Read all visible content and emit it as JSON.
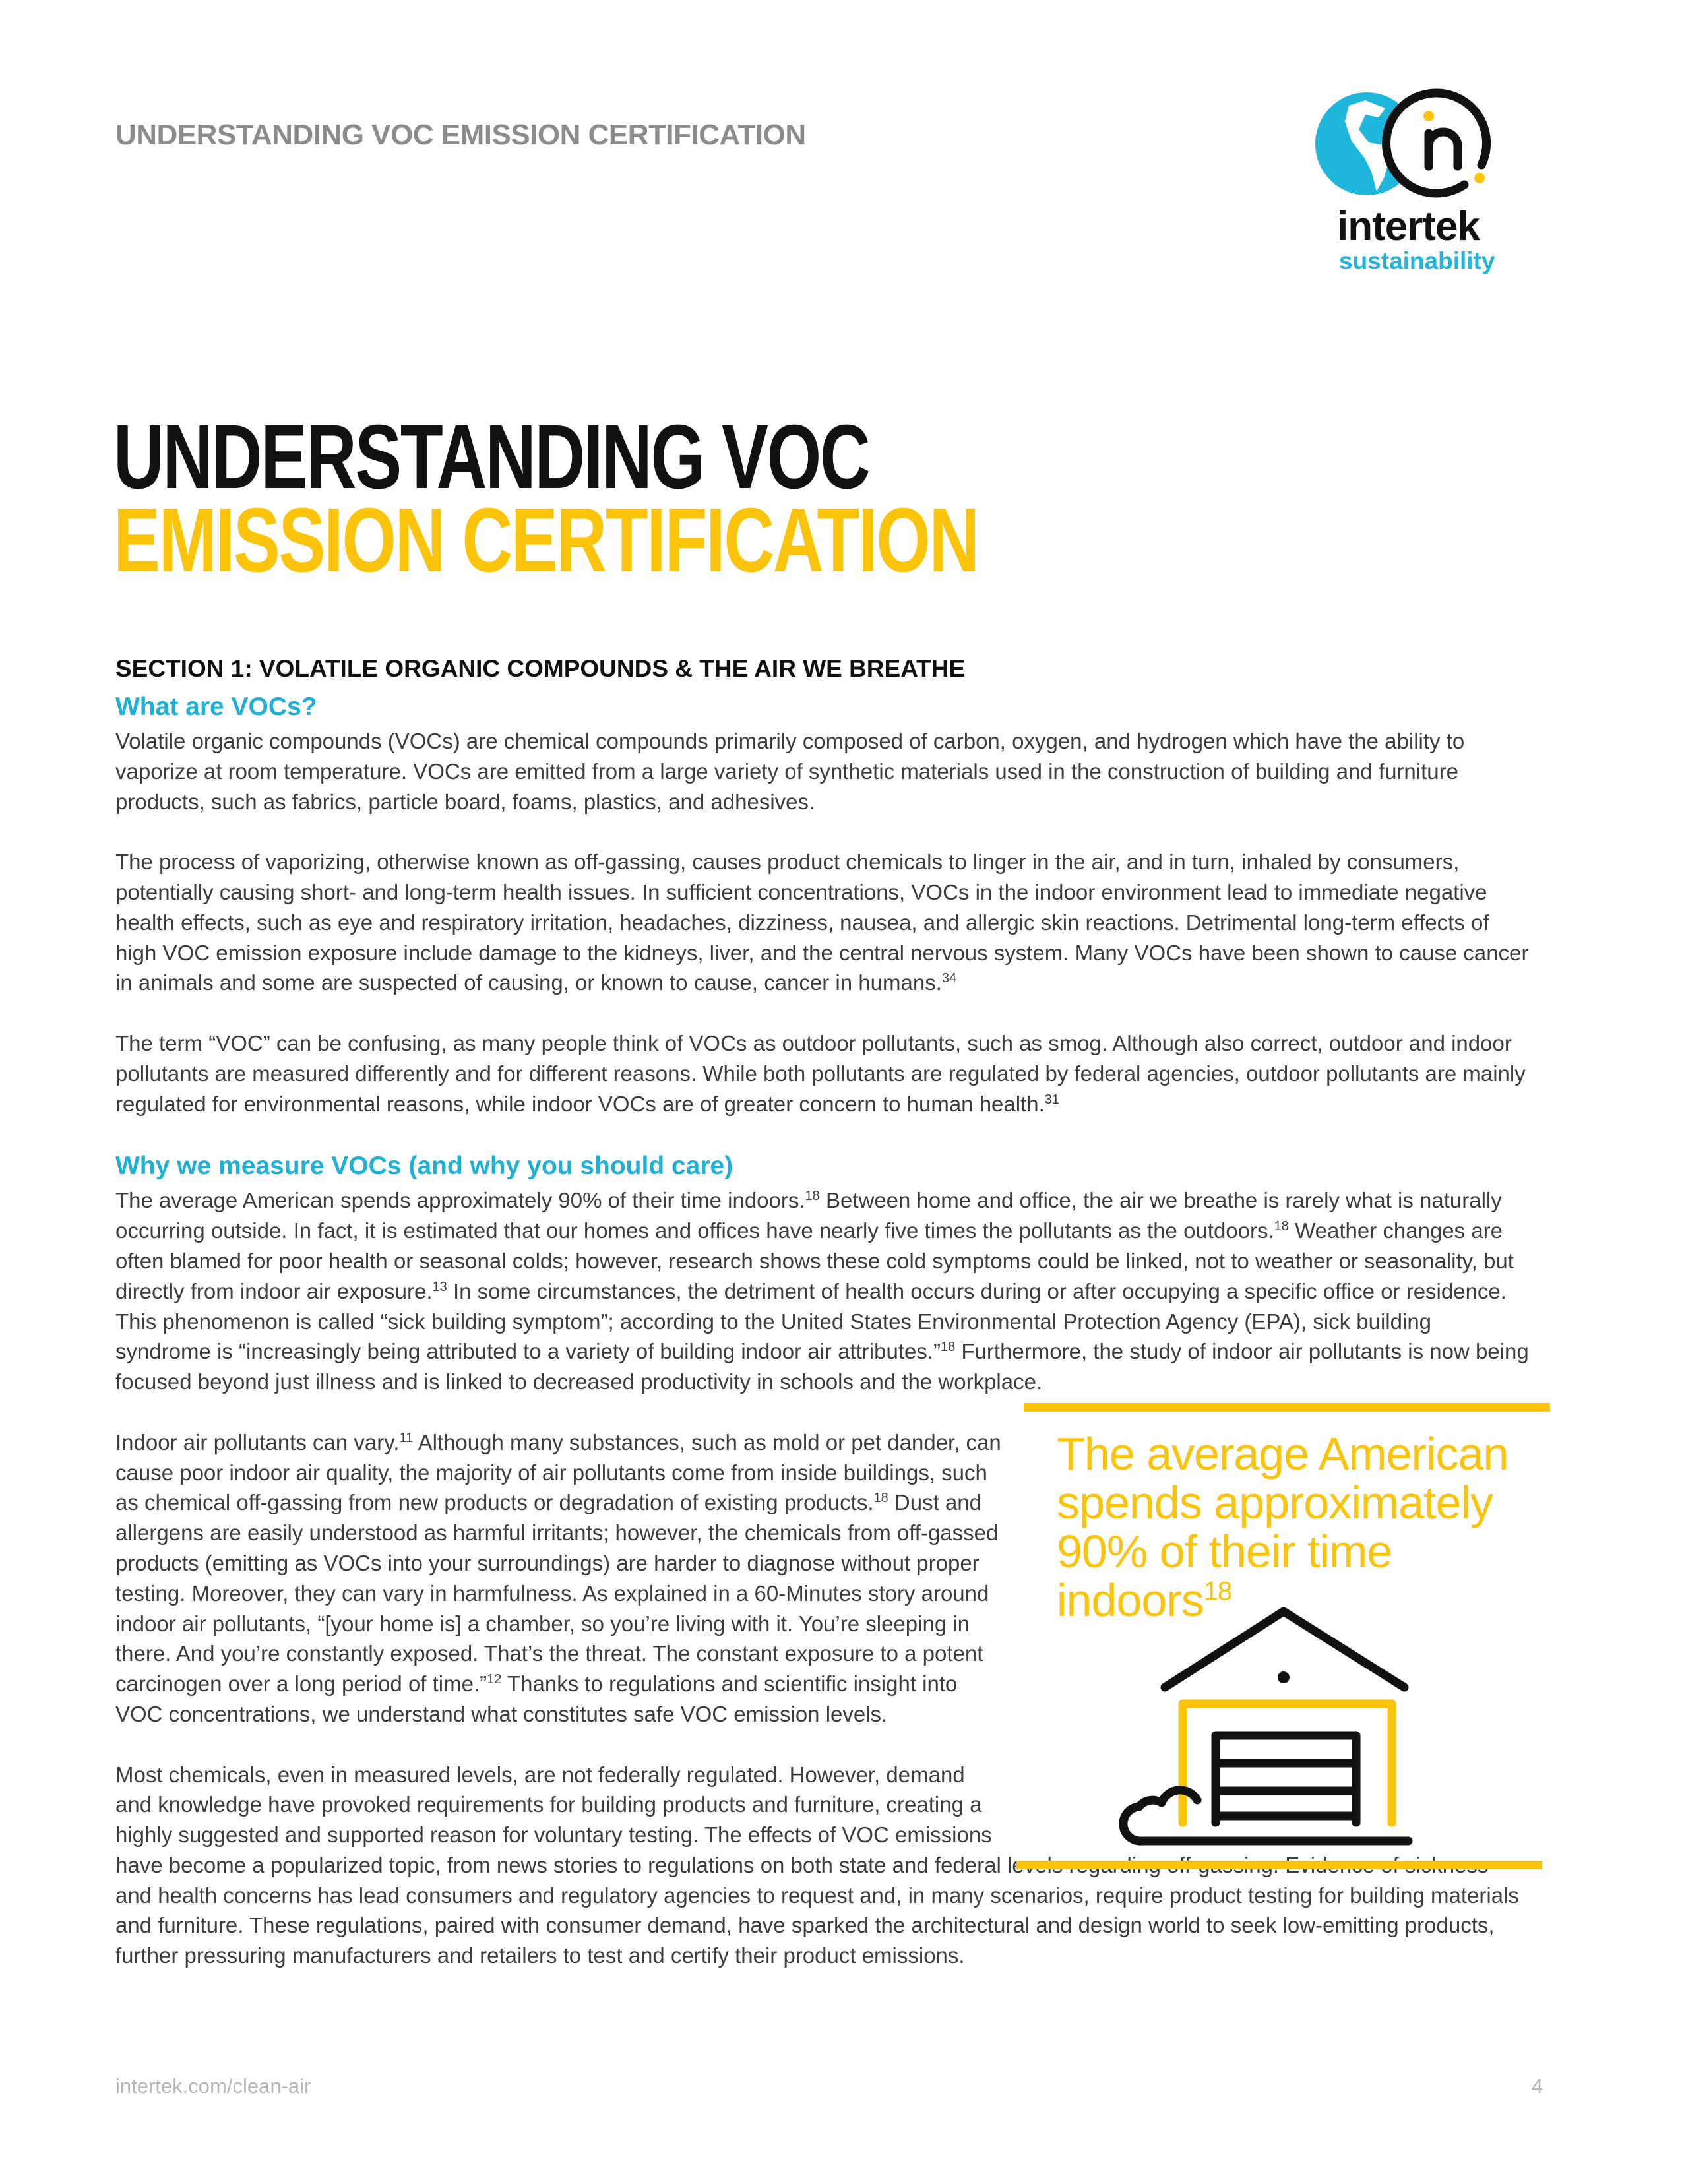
{
  "header": {
    "running_title": "UNDERSTANDING VOC EMISSION CERTIFICATION"
  },
  "logo": {
    "word": "intertek",
    "sub": "sustainability",
    "colors": {
      "globe": "#1fb6dc",
      "ring": "#111111",
      "dots": "#fcc30b"
    }
  },
  "title": {
    "line1": "UNDERSTANDING VOC",
    "line2": "EMISSION CERTIFICATION"
  },
  "colors": {
    "accent_yellow": "#fcc30b",
    "accent_cyan": "#1fb0d6",
    "gray": "#8a8c8e"
  },
  "section": {
    "heading": "SECTION 1: VOLATILE ORGANIC COMPOUNDS & THE AIR WE BREATHE"
  },
  "sub1": "What are VOCs?",
  "sub2": "Why we measure VOCs (and why you should care)",
  "paragraphs": [
    [
      {
        "text": "Volatile organic compounds (VOCs) are chemical compounds primarily composed of carbon, oxygen, and hydrogen which have the ability to vaporize at room temperature. VOCs are emitted from a large variety of synthetic materials used in the construction of building and furniture products, such as fabrics, particle board, foams, plastics, and adhesives."
      }
    ],
    [
      {
        "text": "The process of vaporizing, otherwise known as off-gassing, causes product chemicals to linger in the air, and in turn, inhaled by consumers, potentially causing short- and long-term health issues. In sufficient concentrations, VOCs in the indoor environment lead to immediate negative health effects, such as eye and respiratory irritation, headaches, dizziness, nausea, and allergic skin reactions. Detrimental long-term effects of high VOC emission exposure include damage to the kidneys, liver, and the central nervous system. Many VOCs have been shown to cause cancer in animals and some are suspected of causing, or known to cause, cancer in humans."
      },
      {
        "sup": "34"
      }
    ],
    [
      {
        "text": "The term “VOC” can be confusing, as many people think of VOCs as outdoor pollutants, such as smog. Although also correct, outdoor and indoor pollutants are measured differently and for different reasons. While both pollutants are regulated by federal agencies, outdoor pollutants are mainly regulated for environmental reasons, while indoor VOCs are of greater concern to human health."
      },
      {
        "sup": "31"
      }
    ],
    [
      {
        "text": "The average American spends approximately 90% of their time indoors."
      },
      {
        "sup": "18"
      },
      {
        "text": " Between home and office, the air we breathe is rarely what is naturally occurring outside. In fact, it is estimated that our homes and offices have nearly five times the pollutants as the outdoors."
      },
      {
        "sup": "18"
      },
      {
        "text": " Weather changes are often blamed for poor health or seasonal colds; however, research shows these cold symptoms could be linked, not to weather or seasonality, but directly from indoor air exposure."
      },
      {
        "sup": "13"
      },
      {
        "text": " In some circumstances, the detriment of health occurs during or after occupying a specific office or residence. This phenomenon is called “sick building symptom”; according to the United States Environmental Protection Agency (EPA), sick building syndrome is “increasingly being attributed to a variety of building indoor air attributes.”"
      },
      {
        "sup": "18"
      },
      {
        "text": " Furthermore, the study of indoor air pollutants is now being focused beyond just illness and is linked to decreased productivity in schools and the workplace."
      }
    ],
    [
      {
        "text": "Indoor air pollutants can vary."
      },
      {
        "sup": "11"
      },
      {
        "text": " Although many substances, such as mold or pet dander, can cause poor indoor air quality, the majority of air pollutants come from inside buildings, such as chemical off-gassing from new products or degradation of existing products."
      },
      {
        "sup": "18"
      },
      {
        "text": " Dust and allergens are easily understood as harmful irritants; however, the chemicals from off-gassed products (emitting as VOCs into your surroundings) are harder to diagnose without proper testing. Moreover, they can vary in harmfulness. As explained in a 60-Minutes story around indoor air pollutants, “[your home is] a chamber, so you’re living with it. You’re sleeping in there. And you’re constantly exposed. That’s the threat. The constant exposure to a potent carcinogen over a long period of time.”"
      },
      {
        "sup": "12"
      },
      {
        "text": " Thanks to regulations and scientific insight into VOC concentrations, we understand what constitutes safe VOC emission levels."
      }
    ],
    [
      {
        "text": "Most chemicals, even in measured levels, are not federally regulated. However, demand and knowledge have provoked requirements for building products and furniture, creating a highly suggested and supported reason for voluntary testing. The effects of VOC emissions have become a popularized topic, from news stories to regulations on both state and federal levels regarding off-gassing. Evidence of sickness and health concerns has lead consumers and regulatory agencies to request and, in many scenarios, require product testing for building materials and furniture. These regulations, paired with consumer demand, have sparked the architectural and design world to seek low-emitting products, further pressuring manufacturers and retailers to test and certify their product emissions."
      }
    ]
  ],
  "callout": {
    "text": "The average American spends approximately 90% of their time indoors",
    "sup": "18",
    "icon": "house-garage-icon"
  },
  "footer": {
    "url": "intertek.com/clean-air",
    "page": "4"
  }
}
